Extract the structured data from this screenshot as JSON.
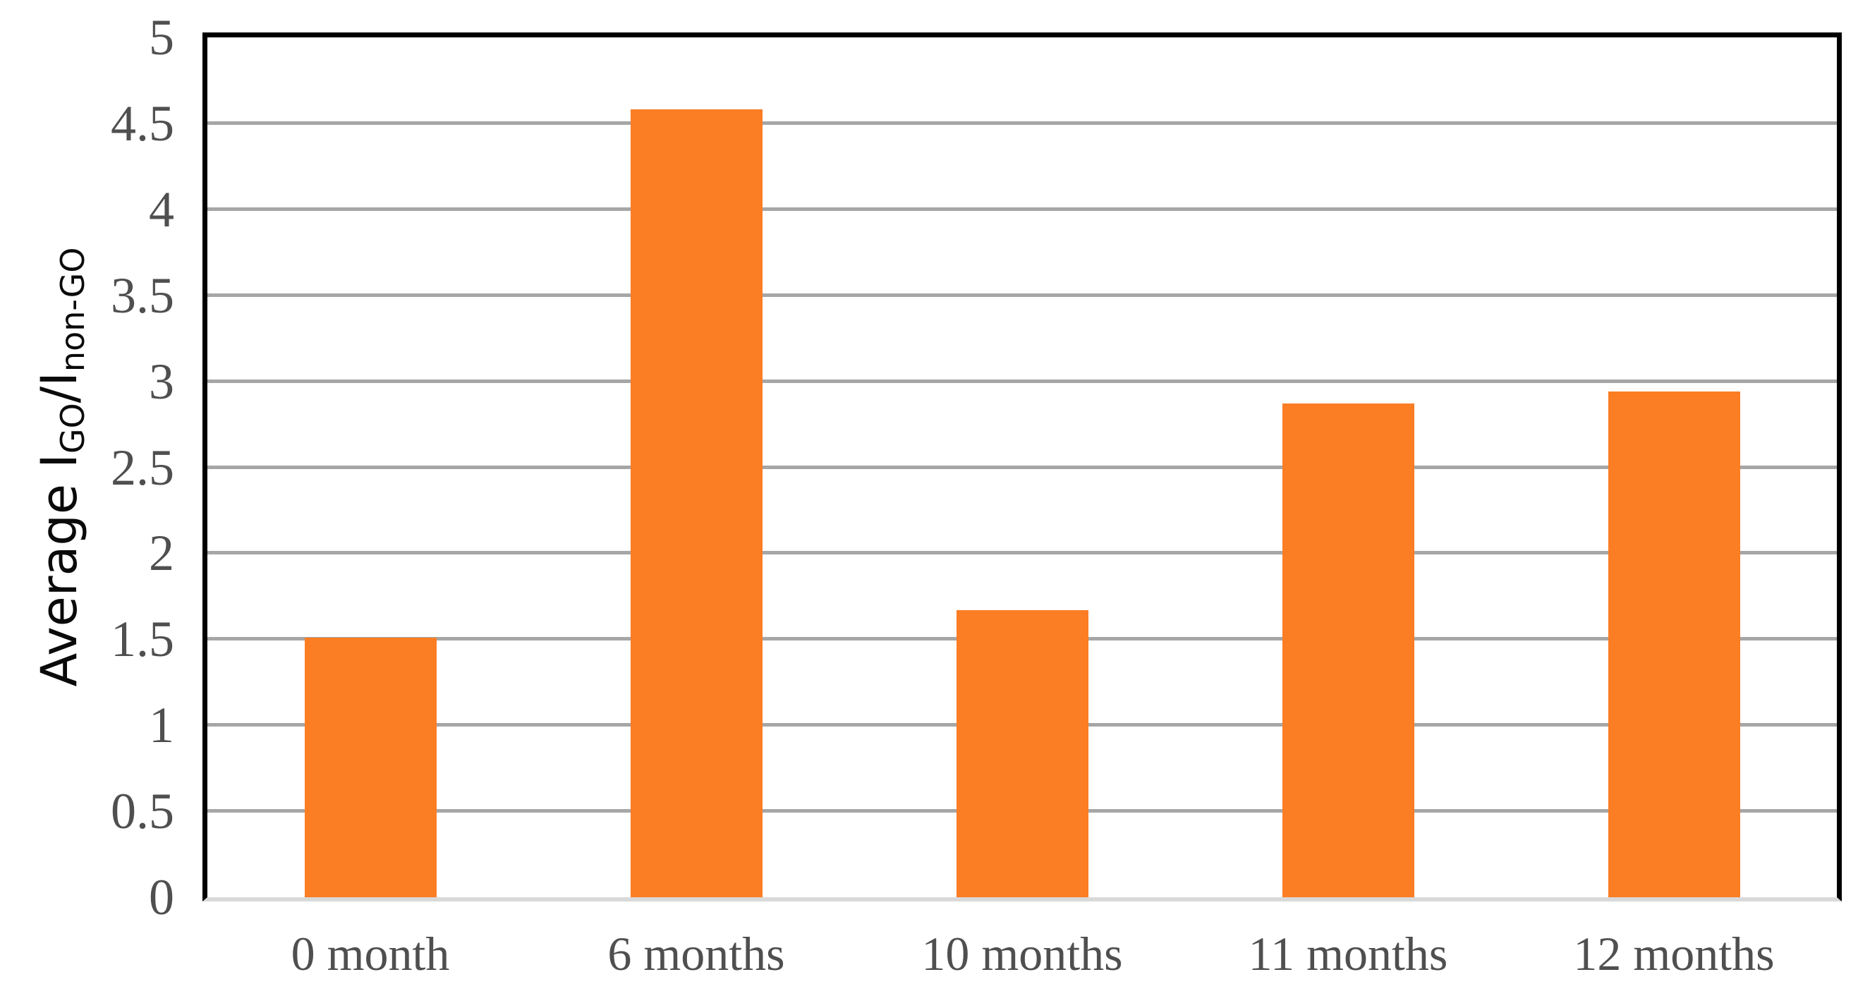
{
  "chart_data": {
    "type": "bar",
    "title": "",
    "categories": [
      "0 month",
      "6 months",
      "10 months",
      "11 months",
      "12 months"
    ],
    "values": [
      1.51,
      4.58,
      1.67,
      2.87,
      2.94
    ],
    "xlabel": "",
    "ylabel_text": "Average I_GO / I_non-GO",
    "ylabel_parts": {
      "prefix": "Average I",
      "sub1": "GO",
      "mid": "/I",
      "sub2": "non-GO"
    },
    "y_ticks": [
      "0",
      "0.5",
      "1",
      "1.5",
      "2",
      "2.5",
      "3",
      "3.5",
      "4",
      "4.5",
      "5"
    ],
    "ylim": [
      0,
      5
    ],
    "grid": "horizontal, every 0.5",
    "legend": "none",
    "colors": {
      "bar_fill": "#FB7D24",
      "gridline": "#A6A6A6",
      "baseline": "#D9D9D9",
      "plot_border": "#000000",
      "tick_label": "#4F4F4F",
      "axis_title": "#0A0A0A"
    }
  }
}
